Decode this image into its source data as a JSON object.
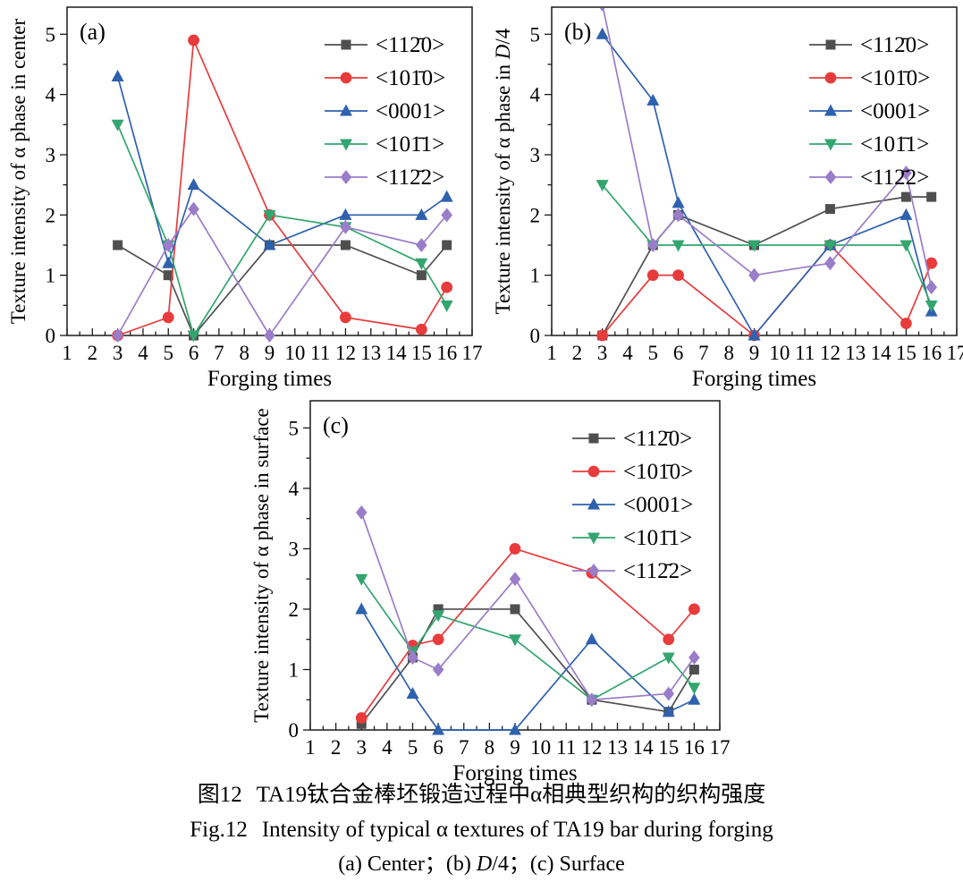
{
  "figure": {
    "caption_zh": {
      "tag": "图12",
      "text": "TA19钛合金棒坯锻造过程中α相典型织构的织构强度"
    },
    "caption_en": {
      "tag": "Fig.12",
      "text": "Intensity of typical α textures of TA19 bar during forging"
    },
    "caption_sub_runs": [
      {
        "t": "(a) Center；(b) "
      },
      {
        "t": "D",
        "i": 1
      },
      {
        "t": "/4；(c) Surface"
      }
    ]
  },
  "axis_color": "#1a1a1a",
  "chart_data": [
    {
      "type": "line",
      "panel": "(a)",
      "xlabel": "Forging times",
      "ylabel_runs": [
        {
          "t": "Texture intensity of α phase in center"
        }
      ],
      "x": [
        3,
        5,
        6,
        9,
        12,
        15,
        16
      ],
      "xlim": [
        1,
        17
      ],
      "ylim": [
        0,
        5.45
      ],
      "xticks": [
        1,
        2,
        3,
        4,
        5,
        6,
        7,
        8,
        9,
        10,
        11,
        12,
        13,
        14,
        15,
        16,
        17
      ],
      "yticks": [
        0,
        1,
        2,
        3,
        4,
        5
      ],
      "grid": false,
      "legend_position": "top-right",
      "series": [
        {
          "name": "<112̄0>",
          "marker": "square",
          "color": "#4f4f4f",
          "values": [
            1.5,
            1.0,
            0.0,
            1.5,
            1.5,
            1.0,
            1.5
          ]
        },
        {
          "name": "<101̄0>",
          "marker": "circle",
          "color": "#e83b3c",
          "values": [
            0.0,
            0.3,
            4.9,
            2.0,
            0.3,
            0.1,
            0.8
          ]
        },
        {
          "name": "<0001>",
          "marker": "triangle-up",
          "color": "#2e61ae",
          "values": [
            4.3,
            1.2,
            2.5,
            1.5,
            2.0,
            2.0,
            2.3
          ]
        },
        {
          "name": "<101̄1>",
          "marker": "triangle-down",
          "color": "#33a56f",
          "values": [
            3.5,
            1.5,
            0.0,
            2.0,
            1.8,
            1.2,
            0.5
          ]
        },
        {
          "name": "<112̄2>",
          "marker": "diamond",
          "color": "#9a7dc9",
          "values": [
            0.0,
            1.5,
            2.1,
            0.0,
            1.8,
            1.5,
            2.0
          ]
        }
      ]
    },
    {
      "type": "line",
      "panel": "(b)",
      "xlabel": "Forging times",
      "ylabel_runs": [
        {
          "t": "Texture intensity of α phase in "
        },
        {
          "t": "D",
          "i": 1
        },
        {
          "t": "/4"
        }
      ],
      "x": [
        3,
        5,
        6,
        9,
        12,
        15,
        16
      ],
      "xlim": [
        1,
        17
      ],
      "ylim": [
        0,
        5.45
      ],
      "xticks": [
        1,
        2,
        3,
        4,
        5,
        6,
        7,
        8,
        9,
        10,
        11,
        12,
        13,
        14,
        15,
        16,
        17
      ],
      "yticks": [
        0,
        1,
        2,
        3,
        4,
        5
      ],
      "grid": false,
      "legend_position": "top-right",
      "series": [
        {
          "name": "<112̄0>",
          "marker": "square",
          "color": "#4f4f4f",
          "values": [
            0.0,
            1.5,
            2.0,
            1.5,
            2.1,
            2.3,
            2.3
          ]
        },
        {
          "name": "<101̄0>",
          "marker": "circle",
          "color": "#e83b3c",
          "values": [
            0.0,
            1.0,
            1.0,
            0.0,
            1.5,
            0.2,
            1.2
          ]
        },
        {
          "name": "<0001>",
          "marker": "triangle-up",
          "color": "#2e61ae",
          "values": [
            5.0,
            3.9,
            2.2,
            0.0,
            1.5,
            2.0,
            0.4
          ]
        },
        {
          "name": "<101̄1>",
          "marker": "triangle-down",
          "color": "#33a56f",
          "values": [
            2.5,
            1.5,
            1.5,
            1.5,
            1.5,
            1.5,
            0.5
          ]
        },
        {
          "name": "<112̄2>",
          "marker": "diamond",
          "color": "#9a7dc9",
          "values": [
            5.5,
            1.5,
            2.0,
            1.0,
            1.2,
            2.7,
            0.8
          ]
        }
      ]
    },
    {
      "type": "line",
      "panel": "(c)",
      "xlabel": "Forging times",
      "ylabel_runs": [
        {
          "t": "Texture intensity of α phase in surface"
        }
      ],
      "x": [
        3,
        5,
        6,
        9,
        12,
        15,
        16
      ],
      "xlim": [
        1,
        17
      ],
      "ylim": [
        0,
        5.45
      ],
      "xticks": [
        1,
        2,
        3,
        4,
        5,
        6,
        7,
        8,
        9,
        10,
        11,
        12,
        13,
        14,
        15,
        16,
        17
      ],
      "yticks": [
        0,
        1,
        2,
        3,
        4,
        5
      ],
      "grid": false,
      "legend_position": "top-right",
      "series": [
        {
          "name": "<112̄0>",
          "marker": "square",
          "color": "#4f4f4f",
          "values": [
            0.1,
            1.2,
            2.0,
            2.0,
            0.5,
            0.3,
            1.0
          ]
        },
        {
          "name": "<101̄0>",
          "marker": "circle",
          "color": "#e83b3c",
          "values": [
            0.2,
            1.4,
            1.5,
            3.0,
            2.6,
            1.5,
            2.0
          ]
        },
        {
          "name": "<0001>",
          "marker": "triangle-up",
          "color": "#2e61ae",
          "values": [
            2.0,
            0.6,
            0.0,
            0.0,
            1.5,
            0.3,
            0.5
          ]
        },
        {
          "name": "<101̄1>",
          "marker": "triangle-down",
          "color": "#33a56f",
          "values": [
            2.5,
            1.3,
            1.9,
            1.5,
            0.5,
            1.2,
            0.7
          ]
        },
        {
          "name": "<112̄2>",
          "marker": "diamond",
          "color": "#9a7dc9",
          "values": [
            3.6,
            1.2,
            1.0,
            2.5,
            0.5,
            0.6,
            1.2
          ]
        }
      ]
    }
  ]
}
